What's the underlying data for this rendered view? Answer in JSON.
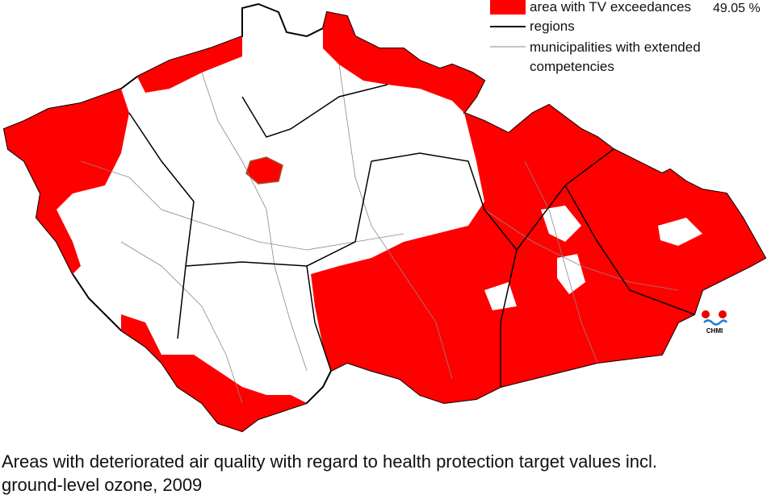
{
  "legend": {
    "items": [
      {
        "label": "area with TV exceedances",
        "value_label": "49.05 %"
      },
      {
        "label": "regions"
      },
      {
        "label": "municipalities with extended competencies"
      }
    ]
  },
  "logo": "CHMI",
  "caption": [
    "Areas with deteriorated air quality with regard to health protection target values incl.",
    "ground-level ozone, 2009"
  ]
}
